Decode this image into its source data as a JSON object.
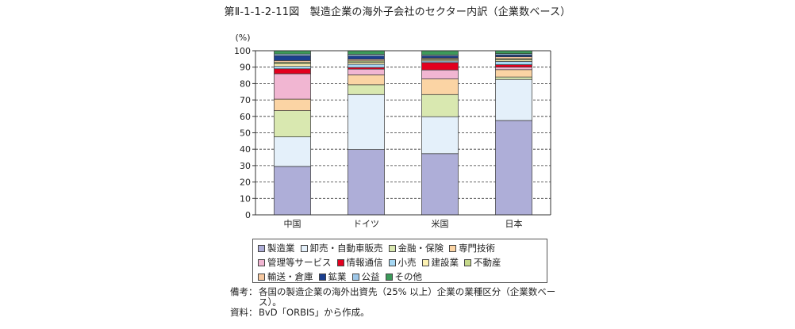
{
  "title": "第Ⅱ-1-1-2-11図　製造企業の海外子会社のセクター内訳（企業数ベース）",
  "chart_data": {
    "type": "bar",
    "stacked": true,
    "title": "第Ⅱ-1-1-2-11図　製造企業の海外子会社のセクター内訳（企業数ベース）",
    "ylabel": "(%)",
    "xlabel": "",
    "ylim": [
      0,
      100
    ],
    "yticks": [
      "0",
      "10",
      "20",
      "30",
      "40",
      "50",
      "60",
      "70",
      "80",
      "90",
      "100"
    ],
    "grid": true,
    "categories": [
      "中国",
      "ドイツ",
      "米国",
      "日本"
    ],
    "series": [
      {
        "name": "製造業",
        "color": "#aeaed8",
        "values": [
          29.5,
          39.8,
          37.3,
          57.5
        ]
      },
      {
        "name": "卸売・自動車販売",
        "color": "#e4f0fa",
        "values": [
          18,
          33.5,
          22.5,
          25
        ]
      },
      {
        "name": "金融・保険",
        "color": "#d9e8b0",
        "values": [
          16,
          6,
          13.5,
          1.5
        ]
      },
      {
        "name": "専門技術",
        "color": "#fbd4a4",
        "values": [
          7,
          6,
          9.5,
          4.5
        ]
      },
      {
        "name": "管理等サービス",
        "color": "#f1b6d2",
        "values": [
          15.5,
          3.5,
          5.5,
          1.5
        ]
      },
      {
        "name": "情報通信",
        "color": "#e3001f",
        "values": [
          3,
          1,
          4.5,
          1.5
        ]
      },
      {
        "name": "小売",
        "color": "#a6d8f4",
        "values": [
          1.5,
          2,
          1,
          2
        ]
      },
      {
        "name": "建設業",
        "color": "#fdf2b3",
        "values": [
          1.5,
          1.2,
          0.8,
          1
        ]
      },
      {
        "name": "不動産",
        "color": "#c6d98a",
        "values": [
          1,
          0.8,
          0.5,
          0.7
        ]
      },
      {
        "name": "輸送・倉庫",
        "color": "#f6c8a0",
        "values": [
          1,
          1,
          0.5,
          1.1
        ]
      },
      {
        "name": "鉱業",
        "color": "#1b3f8f",
        "values": [
          3,
          2,
          1.2,
          1.1
        ]
      },
      {
        "name": "公益",
        "color": "#9ec7e8",
        "values": [
          1,
          1,
          0.7,
          0.8
        ]
      },
      {
        "name": "その他",
        "color": "#3c9a5a",
        "values": [
          2,
          2.2,
          2.5,
          1.8
        ]
      }
    ]
  },
  "notes": [
    {
      "label": "備考：",
      "text": "各国の製造企業の海外出資先（25% 以上）企業の業種区分（企業数ベース）。"
    },
    {
      "label": "資料：",
      "text": "BvD「ORBIS」から作成。"
    }
  ]
}
